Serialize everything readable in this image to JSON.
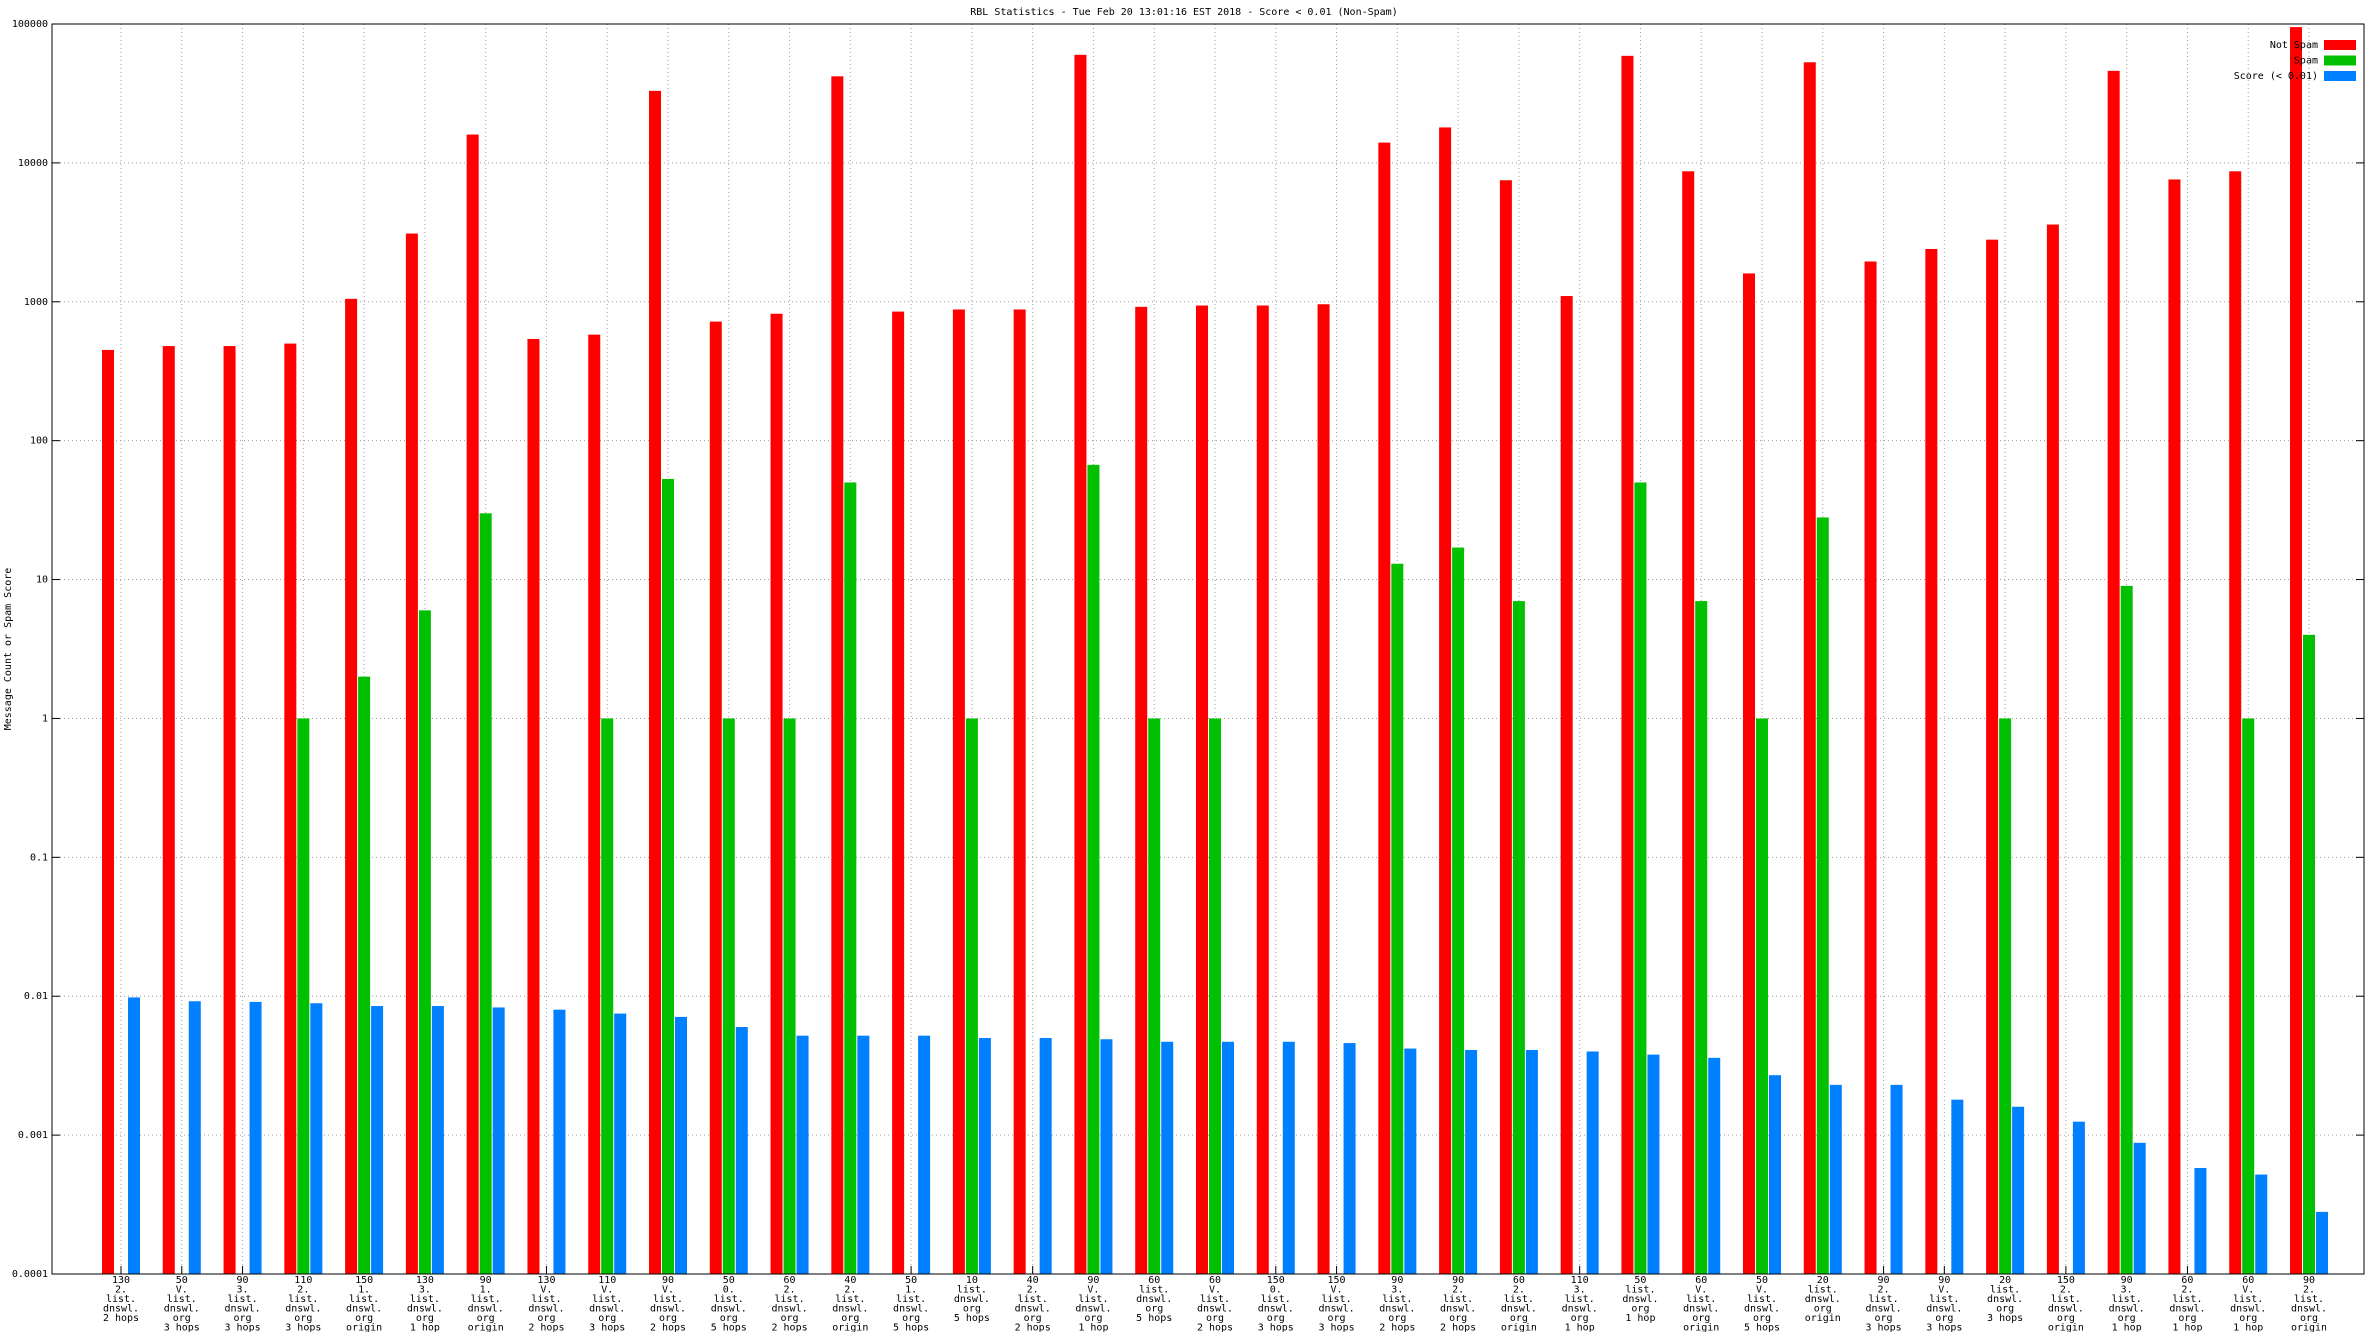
{
  "chart_data": {
    "type": "bar",
    "title": "RBL Statistics - Tue Feb 20 13:01:16 EST 2018 - Score < 0.01 (Non-Spam)",
    "y_label": "Message Count or Spam Score",
    "log_scale": true,
    "grid": true,
    "legend": "top-right",
    "ylim": [
      0.0001,
      100000
    ],
    "yticks": [
      0.0001,
      0.001,
      0.01,
      0.1,
      1,
      10,
      100,
      1000,
      10000,
      100000
    ],
    "categories": [
      "130\n2.\nlist.\ndnswl.\n2 hops",
      "50\nV.\nlist.\ndnswl.\norg\n3 hops",
      "90\n3.\nlist.\ndnswl.\norg\n3 hops",
      "110\n2.\nlist.\ndnswl.\norg\n3 hops",
      "150\n1.\nlist.\ndnswl.\norg\norigin",
      "130\n3.\nlist.\ndnswl.\norg\n1 hop",
      "90\n1.\nlist.\ndnswl.\norg\norigin",
      "130\nV.\nlist.\ndnswl.\norg\n2 hops",
      "110\nV.\nlist.\ndnswl.\norg\n3 hops",
      "90\nV.\nlist.\ndnswl.\norg\n2 hops",
      "50\n0.\nlist.\ndnswl.\norg\n5 hops",
      "60\n2.\nlist.\ndnswl.\norg\n2 hops",
      "40\n2.\nlist.\ndnswl.\norg\norigin",
      "50\n1.\nlist.\ndnswl.\norg\n5 hops",
      "10\nlist.\ndnswl.\norg\n5 hops",
      "40\n2.\nlist.\ndnswl.\norg\n2 hops",
      "90\nV.\nlist.\ndnswl.\norg\n1 hop",
      "60\nlist.\ndnswl.\norg\n5 hops",
      "60\nV.\nlist.\ndnswl.\norg\n2 hops",
      "150\n0.\nlist.\ndnswl.\norg\n3 hops",
      "150\nV.\nlist.\ndnswl.\norg\n3 hops",
      "90\n3.\nlist.\ndnswl.\norg\n2 hops",
      "90\n2.\nlist.\ndnswl.\norg\n2 hops",
      "60\n2.\nlist.\ndnswl.\norg\norigin",
      "110\n3.\nlist.\ndnswl.\norg\n1 hop",
      "50\nlist.\ndnswl.\norg\n1 hop",
      "60\nV.\nlist.\ndnswl.\norg\norigin",
      "50\nV.\nlist.\ndnswl.\norg\n5 hops",
      "20\nlist.\ndnswl.\norg\norigin",
      "90\n2.\nlist.\ndnswl.\norg\n3 hops",
      "90\nV.\nlist.\ndnswl.\norg\n3 hops",
      "20\nlist.\ndnswl.\norg\n3 hops",
      "150\n2.\nlist.\ndnswl.\norg\norigin",
      "90\n3.\nlist.\ndnswl.\norg\n1 hop",
      "60\n2.\nlist.\ndnswl.\norg\n1 hop",
      "60\nV.\nlist.\ndnswl.\norg\n1 hop",
      "90\n2.\nlist.\ndnswl.\norg\norigin"
    ],
    "series": [
      {
        "name": "Not Spam",
        "color": "#ff0000",
        "values": [
          450,
          480,
          480,
          500,
          1050,
          3100,
          16000,
          540,
          580,
          33000,
          720,
          820,
          42000,
          850,
          880,
          880,
          60000,
          920,
          940,
          940,
          960,
          14000,
          18000,
          7500,
          1100,
          59000,
          8700,
          1600,
          53000,
          1950,
          2400,
          2800,
          3600,
          46000,
          7600,
          8700,
          95000
        ]
      },
      {
        "name": "Spam",
        "color": "#00c000",
        "values": [
          null,
          null,
          null,
          1,
          2,
          6,
          30,
          null,
          1,
          53,
          1,
          1,
          50,
          null,
          1,
          null,
          67,
          1,
          1,
          null,
          null,
          13,
          17,
          7,
          null,
          50,
          7,
          1,
          28,
          null,
          null,
          1,
          null,
          9,
          null,
          1,
          4
        ]
      },
      {
        "name": "Score (< 0.01)",
        "color": "#0080ff",
        "values": [
          0.0098,
          0.0092,
          0.0091,
          0.0089,
          0.0085,
          0.0085,
          0.0083,
          0.008,
          0.0075,
          0.0071,
          0.006,
          0.0052,
          0.0052,
          0.0052,
          0.005,
          0.005,
          0.0049,
          0.0047,
          0.0047,
          0.0047,
          0.0046,
          0.0042,
          0.0041,
          0.0041,
          0.004,
          0.0038,
          0.0036,
          0.0027,
          0.0023,
          0.0023,
          0.0018,
          0.0016,
          0.00125,
          0.00088,
          0.00058,
          0.00052,
          0.00028
        ]
      }
    ]
  }
}
